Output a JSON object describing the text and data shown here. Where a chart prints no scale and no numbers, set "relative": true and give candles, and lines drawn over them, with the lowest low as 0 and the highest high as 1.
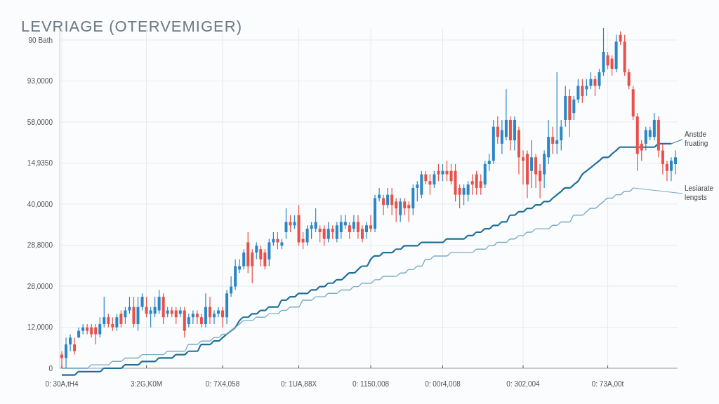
{
  "chart_data": {
    "type": "candlestick",
    "title": "LEVRIAGE (OTERVEMIGER)",
    "relative": true,
    "categories": [
      "0: 30A,tH4",
      null,
      null,
      null,
      null,
      null,
      null,
      null,
      null,
      null,
      null,
      null,
      null,
      null,
      null,
      null,
      null,
      null,
      null,
      null,
      "3:2G,K0M",
      null,
      null,
      null,
      null,
      null,
      null,
      null,
      null,
      null,
      null,
      null,
      null,
      null,
      null,
      null,
      null,
      null,
      "0: 7X4,058",
      null,
      null,
      null,
      null,
      null,
      null,
      null,
      null,
      null,
      null,
      null,
      null,
      null,
      null,
      null,
      null,
      null,
      "0: 1UA,88X",
      null,
      null,
      null,
      null,
      null,
      null,
      null,
      null,
      null,
      null,
      null,
      null,
      null,
      null,
      null,
      null,
      "0: 1150,008",
      null,
      null,
      null,
      null,
      null,
      null,
      null,
      null,
      null,
      null,
      null,
      null,
      null,
      null,
      null,
      null,
      "0: 00r4,008",
      null,
      null,
      null,
      null,
      null,
      null,
      null,
      null,
      null,
      null,
      null,
      null,
      null,
      null,
      null,
      null,
      null,
      null,
      "0: 302,004",
      null,
      null,
      null,
      null,
      null,
      null,
      null,
      null,
      null,
      null,
      null,
      null,
      null,
      null,
      null,
      null,
      null,
      null,
      null,
      "0: 73A,00t",
      null,
      null,
      null,
      null,
      null,
      null,
      null,
      null,
      null,
      null,
      null,
      null,
      null,
      null,
      null,
      null
    ],
    "ohlc": [
      [
        0.04,
        0.05,
        0,
        0.03
      ],
      [
        0.03,
        0.09,
        0,
        0.07
      ],
      [
        0.07,
        0.1,
        0.05,
        0.09
      ],
      [
        0.07,
        0.09,
        0.04,
        0.05
      ],
      [
        0.09,
        0.12,
        0.09,
        0.11
      ],
      [
        0.11,
        0.13,
        0.1,
        0.12
      ],
      [
        0.12,
        0.13,
        0.1,
        0.11
      ],
      [
        0.12,
        0.13,
        0.09,
        0.1
      ],
      [
        0.12,
        0.13,
        0.07,
        0.1
      ],
      [
        0.1,
        0.15,
        0.09,
        0.13
      ],
      [
        0.13,
        0.21,
        0.12,
        0.15
      ],
      [
        0.15,
        0.16,
        0.12,
        0.13
      ],
      [
        0.13,
        0.15,
        0.11,
        0.12
      ],
      [
        0.12,
        0.16,
        0.11,
        0.15
      ],
      [
        0.16,
        0.17,
        0.12,
        0.13
      ],
      [
        0.15,
        0.18,
        0.13,
        0.17
      ],
      [
        0.17,
        0.21,
        0.16,
        0.18
      ],
      [
        0.18,
        0.21,
        0.12,
        0.13
      ],
      [
        0.13,
        0.21,
        0.11,
        0.18
      ],
      [
        0.18,
        0.22,
        0.17,
        0.21
      ],
      [
        0.18,
        0.21,
        0.15,
        0.16
      ],
      [
        0.16,
        0.18,
        0.12,
        0.17
      ],
      [
        0.16,
        0.21,
        0.15,
        0.18
      ],
      [
        0.17,
        0.23,
        0.16,
        0.21
      ],
      [
        0.21,
        0.22,
        0.13,
        0.15
      ],
      [
        0.16,
        0.18,
        0.15,
        0.17
      ],
      [
        0.17,
        0.18,
        0.15,
        0.16
      ],
      [
        0.17,
        0.18,
        0.13,
        0.15
      ],
      [
        0.16,
        0.18,
        0.15,
        0.17
      ],
      [
        0.17,
        0.18,
        0.09,
        0.11
      ],
      [
        0.13,
        0.16,
        0.12,
        0.15
      ],
      [
        0.15,
        0.17,
        0.13,
        0.16
      ],
      [
        0.16,
        0.17,
        0.13,
        0.15
      ],
      [
        0.15,
        0.16,
        0.12,
        0.13
      ],
      [
        0.13,
        0.22,
        0.12,
        0.18
      ],
      [
        0.18,
        0.21,
        0.13,
        0.15
      ],
      [
        0.15,
        0.17,
        0.13,
        0.16
      ],
      [
        0.16,
        0.18,
        0.15,
        0.17
      ],
      [
        0.17,
        0.18,
        0.12,
        0.15
      ],
      [
        0.15,
        0.23,
        0.13,
        0.22
      ],
      [
        0.22,
        0.27,
        0.21,
        0.24
      ],
      [
        0.24,
        0.32,
        0.23,
        0.3
      ],
      [
        0.29,
        0.32,
        0.28,
        0.3
      ],
      [
        0.3,
        0.35,
        0.29,
        0.34
      ],
      [
        0.37,
        0.4,
        0.28,
        0.3
      ],
      [
        0.34,
        0.35,
        0.25,
        0.3
      ],
      [
        0.34,
        0.37,
        0.32,
        0.36
      ],
      [
        0.35,
        0.36,
        0.3,
        0.32
      ],
      [
        0.34,
        0.35,
        0.29,
        0.3
      ],
      [
        0.32,
        0.38,
        0.3,
        0.37
      ],
      [
        0.37,
        0.4,
        0.36,
        0.38
      ],
      [
        0.38,
        0.4,
        0.35,
        0.37
      ],
      [
        0.36,
        0.38,
        0.35,
        0.37
      ],
      [
        0.4,
        0.47,
        0.38,
        0.43
      ],
      [
        0.43,
        0.45,
        0.4,
        0.42
      ],
      [
        0.42,
        0.45,
        0.41,
        0.43
      ],
      [
        0.45,
        0.48,
        0.36,
        0.37
      ],
      [
        0.38,
        0.4,
        0.35,
        0.37
      ],
      [
        0.37,
        0.42,
        0.36,
        0.41
      ],
      [
        0.41,
        0.43,
        0.38,
        0.42
      ],
      [
        0.41,
        0.47,
        0.4,
        0.43
      ],
      [
        0.41,
        0.42,
        0.37,
        0.4
      ],
      [
        0.41,
        0.42,
        0.36,
        0.38
      ],
      [
        0.38,
        0.43,
        0.37,
        0.41
      ],
      [
        0.41,
        0.42,
        0.38,
        0.4
      ],
      [
        0.38,
        0.43,
        0.37,
        0.42
      ],
      [
        0.4,
        0.45,
        0.38,
        0.43
      ],
      [
        0.42,
        0.45,
        0.41,
        0.43
      ],
      [
        0.42,
        0.43,
        0.38,
        0.4
      ],
      [
        0.41,
        0.45,
        0.4,
        0.43
      ],
      [
        0.43,
        0.45,
        0.38,
        0.4
      ],
      [
        0.41,
        0.42,
        0.37,
        0.38
      ],
      [
        0.4,
        0.43,
        0.38,
        0.42
      ],
      [
        0.42,
        0.45,
        0.4,
        0.41
      ],
      [
        0.41,
        0.51,
        0.4,
        0.5
      ],
      [
        0.5,
        0.53,
        0.49,
        0.51
      ],
      [
        0.5,
        0.51,
        0.45,
        0.48
      ],
      [
        0.48,
        0.53,
        0.47,
        0.51
      ],
      [
        0.51,
        0.53,
        0.45,
        0.48
      ],
      [
        0.49,
        0.5,
        0.43,
        0.47
      ],
      [
        0.45,
        0.5,
        0.43,
        0.49
      ],
      [
        0.49,
        0.5,
        0.45,
        0.47
      ],
      [
        0.48,
        0.49,
        0.43,
        0.47
      ],
      [
        0.47,
        0.54,
        0.45,
        0.53
      ],
      [
        0.53,
        0.55,
        0.49,
        0.54
      ],
      [
        0.51,
        0.58,
        0.5,
        0.57
      ],
      [
        0.57,
        0.58,
        0.54,
        0.55
      ],
      [
        0.55,
        0.57,
        0.51,
        0.54
      ],
      [
        0.54,
        0.58,
        0.53,
        0.57
      ],
      [
        0.58,
        0.6,
        0.55,
        0.57
      ],
      [
        0.57,
        0.6,
        0.55,
        0.58
      ],
      [
        0.58,
        0.61,
        0.55,
        0.57
      ],
      [
        0.58,
        0.6,
        0.54,
        0.55
      ],
      [
        0.58,
        0.6,
        0.49,
        0.51
      ],
      [
        0.53,
        0.54,
        0.47,
        0.51
      ],
      [
        0.51,
        0.54,
        0.48,
        0.53
      ],
      [
        0.51,
        0.55,
        0.49,
        0.54
      ],
      [
        0.55,
        0.57,
        0.51,
        0.54
      ],
      [
        0.57,
        0.58,
        0.51,
        0.53
      ],
      [
        0.55,
        0.57,
        0.51,
        0.53
      ],
      [
        0.54,
        0.61,
        0.53,
        0.6
      ],
      [
        0.6,
        0.63,
        0.58,
        0.61
      ],
      [
        0.61,
        0.73,
        0.6,
        0.71
      ],
      [
        0.71,
        0.74,
        0.66,
        0.68
      ],
      [
        0.66,
        0.73,
        0.63,
        0.7
      ],
      [
        0.68,
        0.82,
        0.67,
        0.73
      ],
      [
        0.73,
        0.74,
        0.64,
        0.67
      ],
      [
        0.67,
        0.74,
        0.64,
        0.73
      ],
      [
        0.7,
        0.71,
        0.57,
        0.62
      ],
      [
        0.62,
        0.64,
        0.54,
        0.61
      ],
      [
        0.63,
        0.64,
        0.5,
        0.54
      ],
      [
        0.58,
        0.67,
        0.53,
        0.62
      ],
      [
        0.62,
        0.63,
        0.53,
        0.57
      ],
      [
        0.58,
        0.6,
        0.5,
        0.55
      ],
      [
        0.57,
        0.64,
        0.53,
        0.63
      ],
      [
        0.62,
        0.73,
        0.6,
        0.68
      ],
      [
        0.68,
        0.71,
        0.63,
        0.66
      ],
      [
        0.66,
        0.87,
        0.63,
        0.67
      ],
      [
        0.67,
        0.73,
        0.64,
        0.71
      ],
      [
        0.73,
        0.83,
        0.71,
        0.8
      ],
      [
        0.8,
        0.82,
        0.68,
        0.73
      ],
      [
        0.75,
        0.8,
        0.73,
        0.79
      ],
      [
        0.79,
        0.85,
        0.78,
        0.83
      ],
      [
        0.83,
        0.85,
        0.78,
        0.8
      ],
      [
        0.82,
        0.85,
        0.8,
        0.83
      ],
      [
        0.83,
        0.87,
        0.82,
        0.85
      ],
      [
        0.85,
        0.86,
        0.8,
        0.83
      ],
      [
        0.83,
        0.88,
        0.82,
        0.87
      ],
      [
        0.87,
        1,
        0.86,
        0.93
      ],
      [
        0.92,
        0.93,
        0.88,
        0.89
      ],
      [
        0.91,
        0.92,
        0.86,
        0.88
      ],
      [
        0.88,
        0.98,
        0.87,
        0.96
      ],
      [
        0.98,
        0.99,
        0.95,
        0.96
      ],
      [
        0.96,
        0.98,
        0.86,
        0.87
      ],
      [
        0.87,
        0.88,
        0.82,
        0.83
      ],
      [
        0.82,
        0.83,
        0.73,
        0.74
      ],
      [
        0.74,
        0.75,
        0.58,
        0.63
      ],
      [
        0.66,
        0.67,
        0.61,
        0.64
      ],
      [
        0.66,
        0.71,
        0.64,
        0.7
      ],
      [
        0.68,
        0.71,
        0.67,
        0.7
      ],
      [
        0.68,
        0.75,
        0.67,
        0.73
      ],
      [
        0.73,
        0.74,
        0.62,
        0.64
      ],
      [
        0.64,
        0.66,
        0.57,
        0.6
      ],
      [
        0.6,
        0.61,
        0.55,
        0.58
      ],
      [
        0.58,
        0.62,
        0.55,
        0.61
      ],
      [
        0.6,
        0.64,
        0.57,
        0.62
      ]
    ],
    "series": [
      {
        "name": "Anstde fruating",
        "type": "line",
        "color": "#1f6f99",
        "values": [
          -0.02,
          -0.02,
          -0.02,
          -0.02,
          -0.01,
          -0.01,
          -0.01,
          -0.01,
          -0.01,
          -0.01,
          0,
          0,
          0,
          0,
          0,
          0.01,
          0.01,
          0.01,
          0.01,
          0.02,
          0.02,
          0.02,
          0.02,
          0.03,
          0.03,
          0.03,
          0.03,
          0.04,
          0.04,
          0.04,
          0.05,
          0.05,
          0.05,
          0.07,
          0.07,
          0.07,
          0.08,
          0.08,
          0.09,
          0.1,
          0.11,
          0.12,
          0.14,
          0.15,
          0.15,
          0.16,
          0.16,
          0.17,
          0.17,
          0.18,
          0.18,
          0.18,
          0.2,
          0.2,
          0.21,
          0.21,
          0.22,
          0.22,
          0.22,
          0.23,
          0.23,
          0.24,
          0.24,
          0.25,
          0.25,
          0.26,
          0.26,
          0.27,
          0.28,
          0.28,
          0.29,
          0.3,
          0.3,
          0.32,
          0.33,
          0.33,
          0.34,
          0.34,
          0.34,
          0.35,
          0.35,
          0.36,
          0.36,
          0.36,
          0.36,
          0.37,
          0.37,
          0.37,
          0.37,
          0.37,
          0.37,
          0.38,
          0.38,
          0.38,
          0.38,
          0.38,
          0.39,
          0.39,
          0.4,
          0.4,
          0.41,
          0.41,
          0.42,
          0.42,
          0.43,
          0.43,
          0.45,
          0.45,
          0.46,
          0.46,
          0.47,
          0.47,
          0.48,
          0.48,
          0.49,
          0.49,
          0.5,
          0.51,
          0.52,
          0.53,
          0.53,
          0.54,
          0.55,
          0.57,
          0.58,
          0.59,
          0.6,
          0.61,
          0.62,
          0.62,
          0.63,
          0.64,
          0.65,
          0.65,
          0.65,
          0.65,
          0.65,
          0.65,
          0.65,
          0.65,
          0.65,
          0.66,
          0.66,
          0.66,
          0.66,
          null
        ]
      },
      {
        "name": "Lesiarate lengsts",
        "type": "line",
        "color": "#7aaac4",
        "values": [
          0,
          0,
          0,
          0,
          0,
          0,
          0,
          0.01,
          0.01,
          0.01,
          0.01,
          0.01,
          0.02,
          0.02,
          0.02,
          0.03,
          0.03,
          0.03,
          0.03,
          0.04,
          0.04,
          0.04,
          0.04,
          0.04,
          0.04,
          0.05,
          0.05,
          0.05,
          0.05,
          0.05,
          0.07,
          0.07,
          0.07,
          0.08,
          0.08,
          0.08,
          0.09,
          0.09,
          0.1,
          0.1,
          0.11,
          0.12,
          0.13,
          0.14,
          0.14,
          0.14,
          0.15,
          0.15,
          0.15,
          0.16,
          0.16,
          0.16,
          0.17,
          0.17,
          0.18,
          0.18,
          0.18,
          0.2,
          0.2,
          0.2,
          0.21,
          0.21,
          0.21,
          0.22,
          0.22,
          0.22,
          0.23,
          0.23,
          0.23,
          0.24,
          0.24,
          0.25,
          0.25,
          0.25,
          0.26,
          0.26,
          0.27,
          0.27,
          0.27,
          0.27,
          0.28,
          0.28,
          0.29,
          0.29,
          0.3,
          0.3,
          0.32,
          0.32,
          0.33,
          0.33,
          0.33,
          0.33,
          0.34,
          0.34,
          0.34,
          0.34,
          0.34,
          0.34,
          0.35,
          0.35,
          0.35,
          0.36,
          0.36,
          0.37,
          0.37,
          0.37,
          0.38,
          0.38,
          0.39,
          0.39,
          0.4,
          0.4,
          0.41,
          0.41,
          0.41,
          0.41,
          0.42,
          0.42,
          0.43,
          0.43,
          0.43,
          0.45,
          0.45,
          0.45,
          0.46,
          0.47,
          0.47,
          0.48,
          0.49,
          0.5,
          0.5,
          0.51,
          0.51,
          0.52,
          0.52,
          0.53,
          null,
          null,
          null,
          null,
          null,
          null,
          null,
          null,
          null,
          null
        ]
      }
    ],
    "annotations": [
      "0",
      "12,0000",
      "28,0000",
      "28,8000",
      "40,0000",
      "14,9350",
      "58,0000",
      "93,0000",
      "90 Bath"
    ],
    "grid": true
  }
}
